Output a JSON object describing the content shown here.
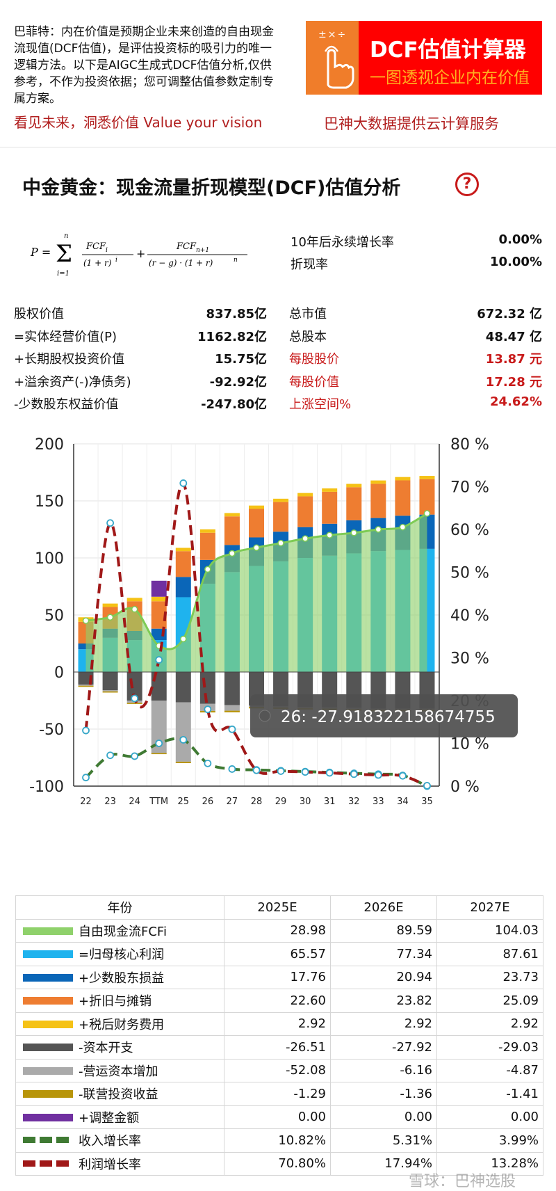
{
  "header": {
    "intro": "巴菲特：内在价值是预期企业未来创造的自由现金流现值(DCF估值)，是评估投资标的吸引力的唯一逻辑方法。以下是AIGC生成式DCF估值分析,仅供参考，不作为投资依据；您可调整估值参数定制专属方案。",
    "slogan": "看见未来，洞悉价值 Value your vision",
    "calc_ops": "±×÷",
    "calc_title": "DCF估值计算器",
    "calc_sub": "一图透视企业内在价值",
    "cloud": "巴神大数据提供云计算服务"
  },
  "title": "中金黄金：现金流量折现模型(DCF)估值分析",
  "help_icon": "?",
  "params": [
    {
      "label": "10年后永续增长率",
      "value": "0.00%"
    },
    {
      "label": "折现率",
      "value": "10.00%"
    }
  ],
  "valuation_left": [
    {
      "label": "股权价值",
      "value": "837.85亿"
    },
    {
      "label": "=实体经营价值(P)",
      "value": "1162.82亿"
    },
    {
      "label": "+长期股权投资价值",
      "value": "15.75亿"
    },
    {
      "label": "+溢余资产(-)净债务)",
      "value": "-92.92亿"
    },
    {
      "label": "-少数股东权益价值",
      "value": "-247.80亿"
    }
  ],
  "valuation_right": [
    {
      "label": "总市值",
      "value": "672.32 亿",
      "red": false
    },
    {
      "label": "总股本",
      "value": "48.47 亿",
      "red": false
    },
    {
      "label": "每股股价",
      "value": "13.87 元",
      "red": true
    },
    {
      "label": "每股价值",
      "value": "17.28 元",
      "red": true
    },
    {
      "label": "上涨空间%",
      "value": "24.62%",
      "red": true
    }
  ],
  "tooltip": "26: -27.918322158674755",
  "watermark": "雪球：巴神选股",
  "colors": {
    "fcf": "#8fd16b",
    "core_profit": "#1fb3ee",
    "minority": "#0a66b8",
    "da": "#ee7d31",
    "tax_fin": "#f5c216",
    "capex": "#555555",
    "wc": "#aaaaaa",
    "jv": "#b8950a",
    "adjust": "#7030a0",
    "rev_growth": "#3f7a33",
    "profit_growth": "#a01818"
  },
  "chart_data": {
    "type": "bar",
    "categories": [
      "22",
      "23",
      "24",
      "TTM",
      "25",
      "26",
      "27",
      "28",
      "29",
      "30",
      "31",
      "32",
      "33",
      "34",
      "35"
    ],
    "ylim": [
      -100,
      200
    ],
    "y2lim": [
      0,
      80
    ],
    "yticks": [
      "-100",
      "-50",
      "0",
      "50",
      "100",
      "150",
      "200"
    ],
    "y2ticks": [
      "0 %",
      "10 %",
      "20 %",
      "30 %",
      "40 %",
      "50 %",
      "60 %",
      "70 %",
      "80 %"
    ],
    "series": [
      {
        "name": "自由现金流FCFi",
        "key": "fcf",
        "kind": "area",
        "values": [
          45,
          48,
          55,
          23,
          29,
          90,
          104,
          109,
          113,
          117,
          120,
          122,
          125,
          127,
          139
        ]
      },
      {
        "name": "=归母核心利润",
        "key": "core_profit",
        "kind": "bar",
        "values": [
          20,
          30,
          28,
          28,
          65.57,
          77.34,
          87.61,
          93,
          97,
          100,
          102,
          104,
          106,
          107,
          108
        ]
      },
      {
        "name": "+少数股东损益",
        "key": "minority",
        "kind": "bar",
        "values": [
          5,
          8,
          8,
          10,
          17.76,
          20.94,
          23.73,
          25,
          26,
          27,
          28,
          29,
          29,
          30,
          30
        ]
      },
      {
        "name": "+折旧与摊销",
        "key": "da",
        "kind": "bar",
        "values": [
          19,
          19,
          26,
          24,
          22.6,
          23.82,
          25.09,
          25,
          26,
          27,
          28,
          29,
          30,
          31,
          31
        ]
      },
      {
        "name": "+税后财务费用",
        "key": "tax_fin",
        "kind": "bar",
        "values": [
          4,
          3,
          3,
          4,
          2.92,
          2.92,
          2.92,
          2.92,
          2.92,
          2.92,
          2.92,
          2.92,
          2.92,
          2.92,
          2.92
        ]
      },
      {
        "name": "-资本开支",
        "key": "capex",
        "kind": "bar",
        "values": [
          -11,
          -16,
          -25,
          -25,
          -26.51,
          -27.92,
          -29.03,
          -29.5,
          -30,
          -30.5,
          -31,
          -31.5,
          -32,
          -32,
          -32
        ]
      },
      {
        "name": "-营运资本增加",
        "key": "wc",
        "kind": "bar",
        "values": [
          -1,
          -1,
          -2,
          -46,
          -52.08,
          -6.16,
          -4.87,
          -1,
          -1,
          -1,
          -1,
          -1,
          -1,
          -1,
          -1
        ]
      },
      {
        "name": "-联营投资收益",
        "key": "jv",
        "kind": "bar",
        "values": [
          -1,
          -1,
          -1,
          -1,
          -1.29,
          -1.36,
          -1.41,
          -1.4,
          -1.4,
          -1.4,
          -1.4,
          -1.4,
          -1.4,
          -1.4,
          -1.4
        ]
      },
      {
        "name": "+调整金额",
        "key": "adjust",
        "kind": "bar",
        "values": [
          0,
          0,
          0,
          14,
          0.0,
          0.0,
          0.0,
          0,
          0,
          0,
          0,
          0,
          0,
          0,
          0
        ]
      },
      {
        "name": "收入增长率",
        "key": "rev_growth",
        "kind": "line",
        "axis": "right",
        "values": [
          2,
          7.2,
          7,
          10,
          10.82,
          5.31,
          3.99,
          3.8,
          3.6,
          3.4,
          3.2,
          3,
          2.8,
          2.5,
          0
        ]
      },
      {
        "name": "利润增长率",
        "key": "profit_growth",
        "kind": "line",
        "axis": "right",
        "values": [
          13,
          61.5,
          20.5,
          29.5,
          70.8,
          17.94,
          13.28,
          3.7,
          3.5,
          3.3,
          3.1,
          2.8,
          2.6,
          2.4,
          0.1
        ]
      }
    ]
  },
  "table": {
    "headers": [
      "年份",
      "2025E",
      "2026E",
      "2027E"
    ],
    "rows": [
      {
        "key": "fcf",
        "label": "自由现金流FCFi",
        "dash": false,
        "v": [
          "28.98",
          "89.59",
          "104.03"
        ]
      },
      {
        "key": "core_profit",
        "label": "=归母核心利润",
        "dash": false,
        "v": [
          "65.57",
          "77.34",
          "87.61"
        ]
      },
      {
        "key": "minority",
        "label": "+少数股东损益",
        "dash": false,
        "v": [
          "17.76",
          "20.94",
          "23.73"
        ]
      },
      {
        "key": "da",
        "label": "+折旧与摊销",
        "dash": false,
        "v": [
          "22.60",
          "23.82",
          "25.09"
        ]
      },
      {
        "key": "tax_fin",
        "label": "+税后财务费用",
        "dash": false,
        "v": [
          "2.92",
          "2.92",
          "2.92"
        ]
      },
      {
        "key": "capex",
        "label": "-资本开支",
        "dash": false,
        "v": [
          "-26.51",
          "-27.92",
          "-29.03"
        ]
      },
      {
        "key": "wc",
        "label": "-营运资本增加",
        "dash": false,
        "v": [
          "-52.08",
          "-6.16",
          "-4.87"
        ]
      },
      {
        "key": "jv",
        "label": "-联营投资收益",
        "dash": false,
        "v": [
          "-1.29",
          "-1.36",
          "-1.41"
        ]
      },
      {
        "key": "adjust",
        "label": "+调整金额",
        "dash": false,
        "v": [
          "0.00",
          "0.00",
          "0.00"
        ]
      },
      {
        "key": "rev_growth",
        "label": "收入增长率",
        "dash": true,
        "v": [
          "10.82%",
          "5.31%",
          "3.99%"
        ]
      },
      {
        "key": "profit_growth",
        "label": "利润增长率",
        "dash": true,
        "v": [
          "70.80%",
          "17.94%",
          "13.28%"
        ]
      }
    ]
  }
}
